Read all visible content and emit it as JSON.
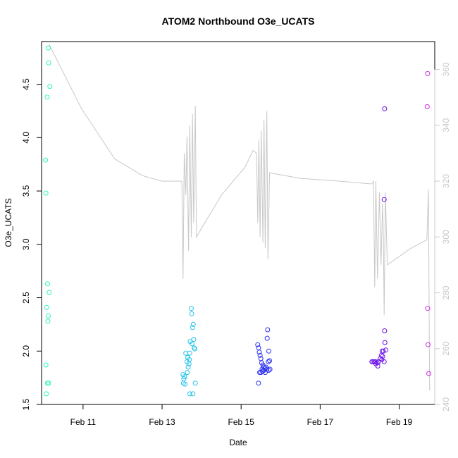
{
  "chart_data": {
    "type": "scatter",
    "title": "ATOM2 Northbound O3e_UCATS",
    "xlabel": "Date",
    "ylabel": "O3e_UCATS",
    "x_unit": "days (February)",
    "xlim": [
      9.95,
      19.9
    ],
    "ylim": [
      1.5,
      4.9
    ],
    "x_ticks": [
      {
        "value": 11,
        "label": "Feb 11"
      },
      {
        "value": 13,
        "label": "Feb 13"
      },
      {
        "value": 15,
        "label": "Feb 15"
      },
      {
        "value": 17,
        "label": "Feb 17"
      },
      {
        "value": 19,
        "label": "Feb 19"
      }
    ],
    "y_ticks": [
      {
        "value": 1.5,
        "label": "1.5"
      },
      {
        "value": 2.0,
        "label": "2.0"
      },
      {
        "value": 2.5,
        "label": "2.5"
      },
      {
        "value": 3.0,
        "label": "3.0"
      },
      {
        "value": 3.5,
        "label": "3.5"
      },
      {
        "value": 4.0,
        "label": "4.0"
      },
      {
        "value": 4.5,
        "label": "4.5"
      }
    ],
    "y2lim": [
      240,
      370
    ],
    "y2_ticks": [
      {
        "value": 240,
        "label": "240"
      },
      {
        "value": 260,
        "label": "260"
      },
      {
        "value": 280,
        "label": "280"
      },
      {
        "value": 300,
        "label": "300"
      },
      {
        "value": 320,
        "label": "320"
      },
      {
        "value": 340,
        "label": "340"
      },
      {
        "value": 360,
        "label": "360"
      }
    ],
    "grid": false,
    "legend": "none",
    "overlay_color": "#c8c8c8",
    "overlay_line": [
      [
        10.14,
        369
      ],
      [
        10.96,
        346
      ],
      [
        11.8,
        328
      ],
      [
        12.5,
        322
      ],
      [
        13.0,
        320
      ],
      [
        13.5,
        320
      ],
      [
        13.53,
        285
      ],
      [
        13.56,
        330
      ],
      [
        13.6,
        315
      ],
      [
        13.63,
        336
      ],
      [
        13.67,
        295
      ],
      [
        13.7,
        340
      ],
      [
        13.74,
        300
      ],
      [
        13.77,
        344
      ],
      [
        13.8,
        305
      ],
      [
        13.84,
        347
      ],
      [
        13.87,
        300
      ],
      [
        14.5,
        315
      ],
      [
        15.1,
        325
      ],
      [
        15.3,
        331
      ],
      [
        15.39,
        330
      ],
      [
        15.42,
        305
      ],
      [
        15.45,
        335
      ],
      [
        15.48,
        300
      ],
      [
        15.51,
        338
      ],
      [
        15.55,
        298
      ],
      [
        15.58,
        342
      ],
      [
        15.61,
        296
      ],
      [
        15.65,
        345
      ],
      [
        15.68,
        292
      ],
      [
        15.72,
        323
      ],
      [
        16.5,
        321
      ],
      [
        17.5,
        320
      ],
      [
        18.3,
        319
      ],
      [
        18.35,
        320
      ],
      [
        18.38,
        282
      ],
      [
        18.41,
        320
      ],
      [
        18.45,
        285
      ],
      [
        18.5,
        316
      ],
      [
        18.54,
        290
      ],
      [
        18.58,
        312
      ],
      [
        18.6,
        300
      ],
      [
        18.62,
        272
      ],
      [
        18.65,
        316
      ],
      [
        18.7,
        290
      ],
      [
        19.3,
        296
      ],
      [
        19.7,
        299
      ],
      [
        19.74,
        317
      ],
      [
        19.77,
        245
      ]
    ],
    "series": [
      {
        "color": "#2af5c0",
        "points": [
          [
            10.12,
            4.84
          ],
          [
            10.13,
            4.7
          ],
          [
            10.16,
            4.48
          ],
          [
            10.09,
            4.38
          ],
          [
            10.05,
            3.79
          ],
          [
            10.06,
            3.48
          ],
          [
            10.1,
            2.63
          ],
          [
            10.14,
            2.55
          ],
          [
            10.08,
            2.41
          ],
          [
            10.12,
            2.33
          ],
          [
            10.11,
            2.28
          ],
          [
            10.06,
            1.87
          ],
          [
            10.1,
            1.7
          ],
          [
            10.13,
            1.7
          ],
          [
            10.07,
            1.6
          ]
        ]
      },
      {
        "color": "#22c3ea",
        "points": [
          [
            13.74,
            2.4
          ],
          [
            13.75,
            2.35
          ],
          [
            13.79,
            2.25
          ],
          [
            13.77,
            2.22
          ],
          [
            13.8,
            2.11
          ],
          [
            13.71,
            2.09
          ],
          [
            13.76,
            2.07
          ],
          [
            13.81,
            2.03
          ],
          [
            13.83,
            2.02
          ],
          [
            13.6,
            1.98
          ],
          [
            13.7,
            1.98
          ],
          [
            13.65,
            1.94
          ],
          [
            13.69,
            1.92
          ],
          [
            13.63,
            1.9
          ],
          [
            13.68,
            1.88
          ],
          [
            13.66,
            1.85
          ],
          [
            13.64,
            1.8
          ],
          [
            13.53,
            1.78
          ],
          [
            13.57,
            1.76
          ],
          [
            13.55,
            1.74
          ],
          [
            13.54,
            1.7
          ],
          [
            13.58,
            1.69
          ],
          [
            13.84,
            1.7
          ],
          [
            13.7,
            1.6
          ],
          [
            13.78,
            1.6
          ]
        ]
      },
      {
        "color": "#2a2ef0",
        "points": [
          [
            15.67,
            2.2
          ],
          [
            15.66,
            2.12
          ],
          [
            15.42,
            2.06
          ],
          [
            15.44,
            2.03
          ],
          [
            15.7,
            2.0
          ],
          [
            15.46,
            1.99
          ],
          [
            15.48,
            1.96
          ],
          [
            15.5,
            1.93
          ],
          [
            15.72,
            1.91
          ],
          [
            15.69,
            1.9
          ],
          [
            15.52,
            1.89
          ],
          [
            15.55,
            1.87
          ],
          [
            15.57,
            1.85
          ],
          [
            15.6,
            1.84
          ],
          [
            15.63,
            1.85
          ],
          [
            15.53,
            1.83
          ],
          [
            15.58,
            1.82
          ],
          [
            15.65,
            1.83
          ],
          [
            15.7,
            1.82
          ],
          [
            15.73,
            1.83
          ],
          [
            15.47,
            1.8
          ],
          [
            15.5,
            1.8
          ],
          [
            15.54,
            1.81
          ],
          [
            15.61,
            1.8
          ],
          [
            15.44,
            1.7
          ]
        ]
      },
      {
        "color": "#6a10e8",
        "points": [
          [
            18.63,
            4.27
          ],
          [
            18.62,
            3.42
          ],
          [
            18.63,
            2.19
          ],
          [
            18.64,
            2.08
          ],
          [
            18.57,
            2.0
          ],
          [
            18.6,
            2.0
          ],
          [
            18.66,
            2.01
          ],
          [
            18.55,
            1.96
          ],
          [
            18.58,
            1.95
          ],
          [
            18.52,
            1.93
          ],
          [
            18.56,
            1.92
          ],
          [
            18.31,
            1.9
          ],
          [
            18.34,
            1.9
          ],
          [
            18.37,
            1.9
          ],
          [
            18.4,
            1.9
          ],
          [
            18.44,
            1.89
          ],
          [
            18.48,
            1.9
          ],
          [
            18.62,
            1.9
          ],
          [
            18.41,
            1.88
          ],
          [
            18.46,
            1.86
          ]
        ]
      },
      {
        "color": "#d22ae6",
        "points": [
          [
            19.72,
            4.6
          ],
          [
            19.71,
            4.29
          ],
          [
            19.72,
            2.4
          ],
          [
            19.73,
            2.06
          ],
          [
            19.75,
            1.79
          ]
        ]
      }
    ]
  }
}
